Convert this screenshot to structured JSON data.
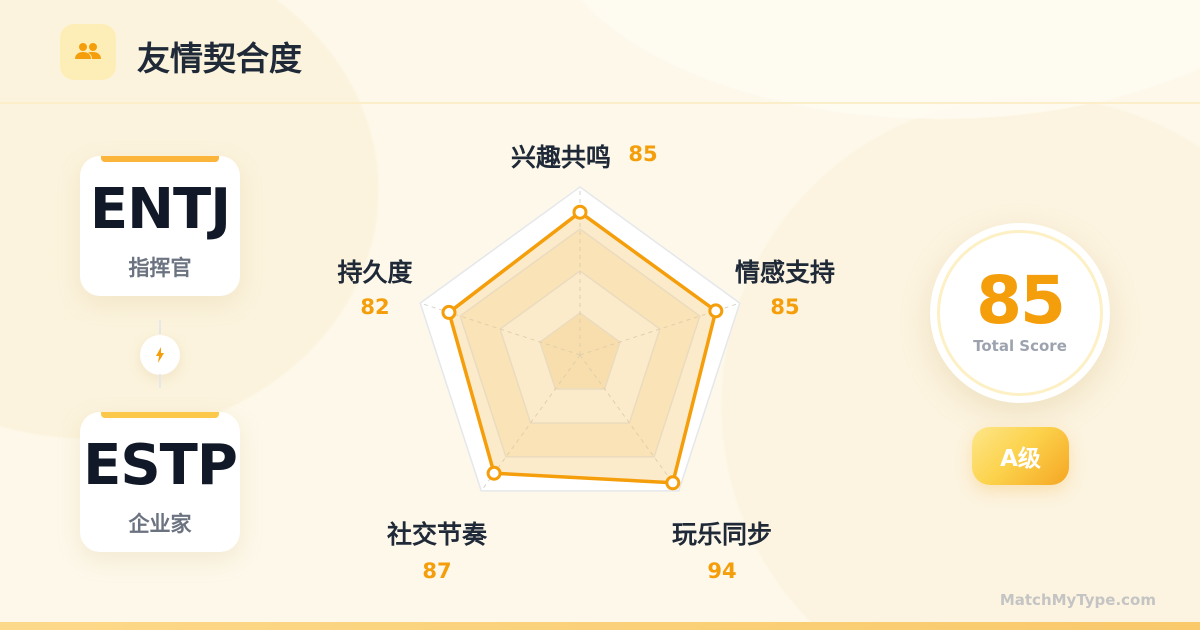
{
  "header": {
    "title": "友情契合度",
    "icon": "users-icon"
  },
  "types": [
    {
      "code": "ENTJ",
      "name": "指挥官"
    },
    {
      "code": "ESTP",
      "name": "企业家"
    }
  ],
  "link_icon": "lightning-icon",
  "chart_data": {
    "type": "radar",
    "categories": [
      "兴趣共鸣",
      "情感支持",
      "玩乐同步",
      "社交节奏",
      "持久度"
    ],
    "values": [
      85,
      85,
      94,
      87,
      82
    ],
    "range": [
      0,
      100
    ],
    "colors": {
      "line": "#f59e0b",
      "fill": "#f5c56b"
    }
  },
  "score": {
    "value": "85",
    "caption": "Total Score",
    "grade": "A级"
  },
  "footer": "MatchMyType.com"
}
